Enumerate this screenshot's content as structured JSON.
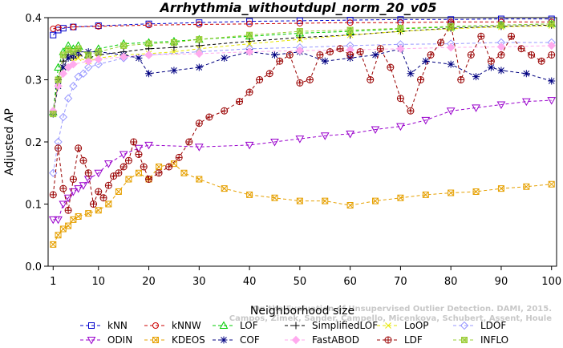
{
  "chart_data": {
    "type": "line",
    "title": "Arrhythmia_withoutdupl_norm_20_v05",
    "xlabel": "Neighborhood size",
    "ylabel": "Adjusted AP",
    "xlim": [
      0,
      101
    ],
    "ylim": [
      0,
      0.4
    ],
    "xticks": [
      1,
      10,
      20,
      30,
      40,
      50,
      60,
      70,
      80,
      90,
      100
    ],
    "yticks": [
      0.0,
      0.1,
      0.2,
      0.3,
      0.4
    ],
    "grid": false,
    "legend_position": "bottom",
    "watermark": [
      "Campos, Zimek, Sander, Campello, Micenkova, Schubert, Assent, Houle",
      "On the Evaluation of Unsupervised Outlier Detection. DAMI, 2015."
    ],
    "series": [
      {
        "name": "kNN",
        "color": "#0000cc",
        "marker": "square",
        "dash": "4,3",
        "points": [
          [
            1,
            0.372
          ],
          [
            2,
            0.38
          ],
          [
            3,
            0.383
          ],
          [
            5,
            0.385
          ],
          [
            10,
            0.387
          ],
          [
            20,
            0.39
          ],
          [
            30,
            0.392
          ],
          [
            40,
            0.394
          ],
          [
            50,
            0.395
          ],
          [
            60,
            0.396
          ],
          [
            70,
            0.397
          ],
          [
            80,
            0.397
          ],
          [
            90,
            0.398
          ],
          [
            100,
            0.398
          ]
        ]
      },
      {
        "name": "kNNW",
        "color": "#cc0000",
        "marker": "circle",
        "dash": "4,3",
        "points": [
          [
            1,
            0.382
          ],
          [
            2,
            0.384
          ],
          [
            5,
            0.385
          ],
          [
            10,
            0.386
          ],
          [
            20,
            0.388
          ],
          [
            30,
            0.389
          ],
          [
            40,
            0.39
          ],
          [
            50,
            0.391
          ],
          [
            60,
            0.392
          ],
          [
            70,
            0.392
          ],
          [
            80,
            0.393
          ],
          [
            90,
            0.393
          ],
          [
            100,
            0.393
          ]
        ]
      },
      {
        "name": "LOF",
        "color": "#00cc00",
        "marker": "triangle",
        "dash": "4,3",
        "points": [
          [
            1,
            0.248
          ],
          [
            2,
            0.32
          ],
          [
            3,
            0.345
          ],
          [
            4,
            0.355
          ],
          [
            5,
            0.35
          ],
          [
            6,
            0.355
          ],
          [
            8,
            0.34
          ],
          [
            10,
            0.35
          ],
          [
            15,
            0.358
          ],
          [
            20,
            0.36
          ],
          [
            25,
            0.362
          ],
          [
            30,
            0.365
          ],
          [
            40,
            0.37
          ],
          [
            50,
            0.375
          ],
          [
            60,
            0.378
          ],
          [
            70,
            0.382
          ],
          [
            80,
            0.385
          ],
          [
            90,
            0.388
          ],
          [
            100,
            0.39
          ]
        ]
      },
      {
        "name": "SimplifiedLOF",
        "color": "#000000",
        "marker": "plus",
        "dash": "4,3",
        "points": [
          [
            1,
            0.248
          ],
          [
            2,
            0.3
          ],
          [
            3,
            0.33
          ],
          [
            4,
            0.34
          ],
          [
            5,
            0.335
          ],
          [
            6,
            0.34
          ],
          [
            8,
            0.335
          ],
          [
            10,
            0.34
          ],
          [
            15,
            0.345
          ],
          [
            20,
            0.35
          ],
          [
            25,
            0.352
          ],
          [
            30,
            0.355
          ],
          [
            40,
            0.362
          ],
          [
            50,
            0.368
          ],
          [
            60,
            0.372
          ],
          [
            70,
            0.378
          ],
          [
            80,
            0.383
          ],
          [
            90,
            0.386
          ],
          [
            100,
            0.388
          ]
        ]
      },
      {
        "name": "LoOP",
        "color": "#e6e600",
        "marker": "x",
        "dash": "4,3",
        "points": [
          [
            1,
            0.245
          ],
          [
            2,
            0.29
          ],
          [
            3,
            0.32
          ],
          [
            4,
            0.335
          ],
          [
            5,
            0.33
          ],
          [
            6,
            0.335
          ],
          [
            8,
            0.33
          ],
          [
            10,
            0.335
          ],
          [
            15,
            0.34
          ],
          [
            20,
            0.342
          ],
          [
            25,
            0.345
          ],
          [
            30,
            0.35
          ],
          [
            40,
            0.358
          ],
          [
            50,
            0.365
          ],
          [
            60,
            0.372
          ],
          [
            70,
            0.378
          ],
          [
            80,
            0.382
          ],
          [
            90,
            0.385
          ],
          [
            100,
            0.387
          ]
        ]
      },
      {
        "name": "LDOF",
        "color": "#9999ff",
        "marker": "diamond",
        "dash": "4,3",
        "points": [
          [
            1,
            0.15
          ],
          [
            2,
            0.2
          ],
          [
            3,
            0.24
          ],
          [
            4,
            0.27
          ],
          [
            5,
            0.29
          ],
          [
            6,
            0.305
          ],
          [
            7,
            0.31
          ],
          [
            8,
            0.32
          ],
          [
            10,
            0.325
          ],
          [
            15,
            0.335
          ],
          [
            20,
            0.34
          ],
          [
            30,
            0.345
          ],
          [
            40,
            0.35
          ],
          [
            50,
            0.352
          ],
          [
            60,
            0.355
          ],
          [
            70,
            0.357
          ],
          [
            80,
            0.358
          ],
          [
            90,
            0.36
          ],
          [
            100,
            0.36
          ]
        ]
      },
      {
        "name": "ODIN",
        "color": "#9900cc",
        "marker": "triangle-down",
        "dash": "4,3",
        "points": [
          [
            1,
            0.075
          ],
          [
            2,
            0.075
          ],
          [
            3,
            0.1
          ],
          [
            4,
            0.11
          ],
          [
            5,
            0.12
          ],
          [
            6,
            0.125
          ],
          [
            7,
            0.13
          ],
          [
            8,
            0.14
          ],
          [
            10,
            0.15
          ],
          [
            12,
            0.165
          ],
          [
            15,
            0.18
          ],
          [
            18,
            0.19
          ],
          [
            20,
            0.195
          ],
          [
            30,
            0.192
          ],
          [
            40,
            0.195
          ],
          [
            45,
            0.2
          ],
          [
            50,
            0.205
          ],
          [
            55,
            0.21
          ],
          [
            60,
            0.213
          ],
          [
            65,
            0.22
          ],
          [
            70,
            0.225
          ],
          [
            75,
            0.235
          ],
          [
            80,
            0.25
          ],
          [
            85,
            0.255
          ],
          [
            90,
            0.26
          ],
          [
            95,
            0.265
          ],
          [
            100,
            0.267
          ]
        ]
      },
      {
        "name": "KDEOS",
        "color": "#e6a000",
        "marker": "square-x",
        "dash": "4,3",
        "points": [
          [
            1,
            0.035
          ],
          [
            2,
            0.05
          ],
          [
            3,
            0.06
          ],
          [
            4,
            0.065
          ],
          [
            5,
            0.075
          ],
          [
            6,
            0.08
          ],
          [
            8,
            0.085
          ],
          [
            10,
            0.09
          ],
          [
            12,
            0.1
          ],
          [
            14,
            0.12
          ],
          [
            16,
            0.14
          ],
          [
            18,
            0.15
          ],
          [
            20,
            0.14
          ],
          [
            22,
            0.16
          ],
          [
            25,
            0.165
          ],
          [
            27,
            0.15
          ],
          [
            30,
            0.14
          ],
          [
            35,
            0.125
          ],
          [
            40,
            0.115
          ],
          [
            45,
            0.11
          ],
          [
            50,
            0.105
          ],
          [
            55,
            0.105
          ],
          [
            60,
            0.098
          ],
          [
            65,
            0.105
          ],
          [
            70,
            0.11
          ],
          [
            75,
            0.115
          ],
          [
            80,
            0.118
          ],
          [
            85,
            0.12
          ],
          [
            90,
            0.125
          ],
          [
            95,
            0.128
          ],
          [
            100,
            0.132
          ]
        ]
      },
      {
        "name": "COF",
        "color": "#000080",
        "marker": "star",
        "dash": "4,3",
        "points": [
          [
            1,
            0.245
          ],
          [
            2,
            0.29
          ],
          [
            3,
            0.32
          ],
          [
            4,
            0.335
          ],
          [
            5,
            0.34
          ],
          [
            6,
            0.345
          ],
          [
            8,
            0.345
          ],
          [
            10,
            0.345
          ],
          [
            15,
            0.34
          ],
          [
            18,
            0.335
          ],
          [
            20,
            0.31
          ],
          [
            25,
            0.315
          ],
          [
            30,
            0.32
          ],
          [
            35,
            0.335
          ],
          [
            40,
            0.345
          ],
          [
            45,
            0.34
          ],
          [
            50,
            0.345
          ],
          [
            55,
            0.33
          ],
          [
            60,
            0.335
          ],
          [
            65,
            0.34
          ],
          [
            70,
            0.35
          ],
          [
            72,
            0.31
          ],
          [
            75,
            0.33
          ],
          [
            80,
            0.325
          ],
          [
            85,
            0.305
          ],
          [
            88,
            0.32
          ],
          [
            90,
            0.315
          ],
          [
            95,
            0.31
          ],
          [
            100,
            0.298
          ]
        ]
      },
      {
        "name": "FastABOD",
        "color": "#ffaaee",
        "marker": "diamond-filled",
        "dash": "4,3",
        "points": [
          [
            1,
            0.25
          ],
          [
            2,
            0.29
          ],
          [
            3,
            0.31
          ],
          [
            4,
            0.32
          ],
          [
            5,
            0.325
          ],
          [
            8,
            0.33
          ],
          [
            10,
            0.333
          ],
          [
            15,
            0.337
          ],
          [
            20,
            0.34
          ],
          [
            30,
            0.342
          ],
          [
            40,
            0.345
          ],
          [
            50,
            0.347
          ],
          [
            60,
            0.348
          ],
          [
            70,
            0.35
          ],
          [
            80,
            0.352
          ],
          [
            90,
            0.353
          ],
          [
            100,
            0.355
          ]
        ]
      },
      {
        "name": "LDF",
        "color": "#990000",
        "marker": "circle-plus",
        "dash": "4,3",
        "points": [
          [
            1,
            0.115
          ],
          [
            2,
            0.19
          ],
          [
            3,
            0.125
          ],
          [
            4,
            0.09
          ],
          [
            5,
            0.14
          ],
          [
            6,
            0.19
          ],
          [
            7,
            0.17
          ],
          [
            8,
            0.15
          ],
          [
            9,
            0.1
          ],
          [
            10,
            0.12
          ],
          [
            11,
            0.11
          ],
          [
            12,
            0.13
          ],
          [
            13,
            0.145
          ],
          [
            14,
            0.15
          ],
          [
            15,
            0.16
          ],
          [
            16,
            0.17
          ],
          [
            17,
            0.2
          ],
          [
            18,
            0.18
          ],
          [
            19,
            0.16
          ],
          [
            20,
            0.14
          ],
          [
            22,
            0.15
          ],
          [
            24,
            0.16
          ],
          [
            26,
            0.175
          ],
          [
            28,
            0.2
          ],
          [
            30,
            0.23
          ],
          [
            32,
            0.24
          ],
          [
            35,
            0.25
          ],
          [
            38,
            0.265
          ],
          [
            40,
            0.28
          ],
          [
            42,
            0.3
          ],
          [
            44,
            0.31
          ],
          [
            46,
            0.33
          ],
          [
            48,
            0.34
          ],
          [
            50,
            0.295
          ],
          [
            52,
            0.3
          ],
          [
            54,
            0.34
          ],
          [
            56,
            0.345
          ],
          [
            58,
            0.35
          ],
          [
            60,
            0.34
          ],
          [
            62,
            0.345
          ],
          [
            64,
            0.3
          ],
          [
            66,
            0.35
          ],
          [
            68,
            0.32
          ],
          [
            70,
            0.27
          ],
          [
            72,
            0.25
          ],
          [
            74,
            0.3
          ],
          [
            76,
            0.34
          ],
          [
            78,
            0.36
          ],
          [
            80,
            0.39
          ],
          [
            82,
            0.3
          ],
          [
            84,
            0.34
          ],
          [
            86,
            0.37
          ],
          [
            88,
            0.33
          ],
          [
            90,
            0.34
          ],
          [
            92,
            0.37
          ],
          [
            94,
            0.35
          ],
          [
            96,
            0.34
          ],
          [
            98,
            0.33
          ],
          [
            100,
            0.34
          ]
        ]
      },
      {
        "name": "INFLO",
        "color": "#99cc33",
        "marker": "square-x-filled",
        "dash": "4,3",
        "points": [
          [
            1,
            0.245
          ],
          [
            2,
            0.3
          ],
          [
            3,
            0.34
          ],
          [
            4,
            0.348
          ],
          [
            5,
            0.345
          ],
          [
            6,
            0.35
          ],
          [
            8,
            0.34
          ],
          [
            10,
            0.345
          ],
          [
            15,
            0.355
          ],
          [
            20,
            0.358
          ],
          [
            25,
            0.36
          ],
          [
            30,
            0.365
          ],
          [
            40,
            0.372
          ],
          [
            50,
            0.378
          ],
          [
            60,
            0.38
          ],
          [
            70,
            0.383
          ],
          [
            80,
            0.386
          ],
          [
            90,
            0.388
          ],
          [
            100,
            0.39
          ]
        ]
      }
    ]
  }
}
